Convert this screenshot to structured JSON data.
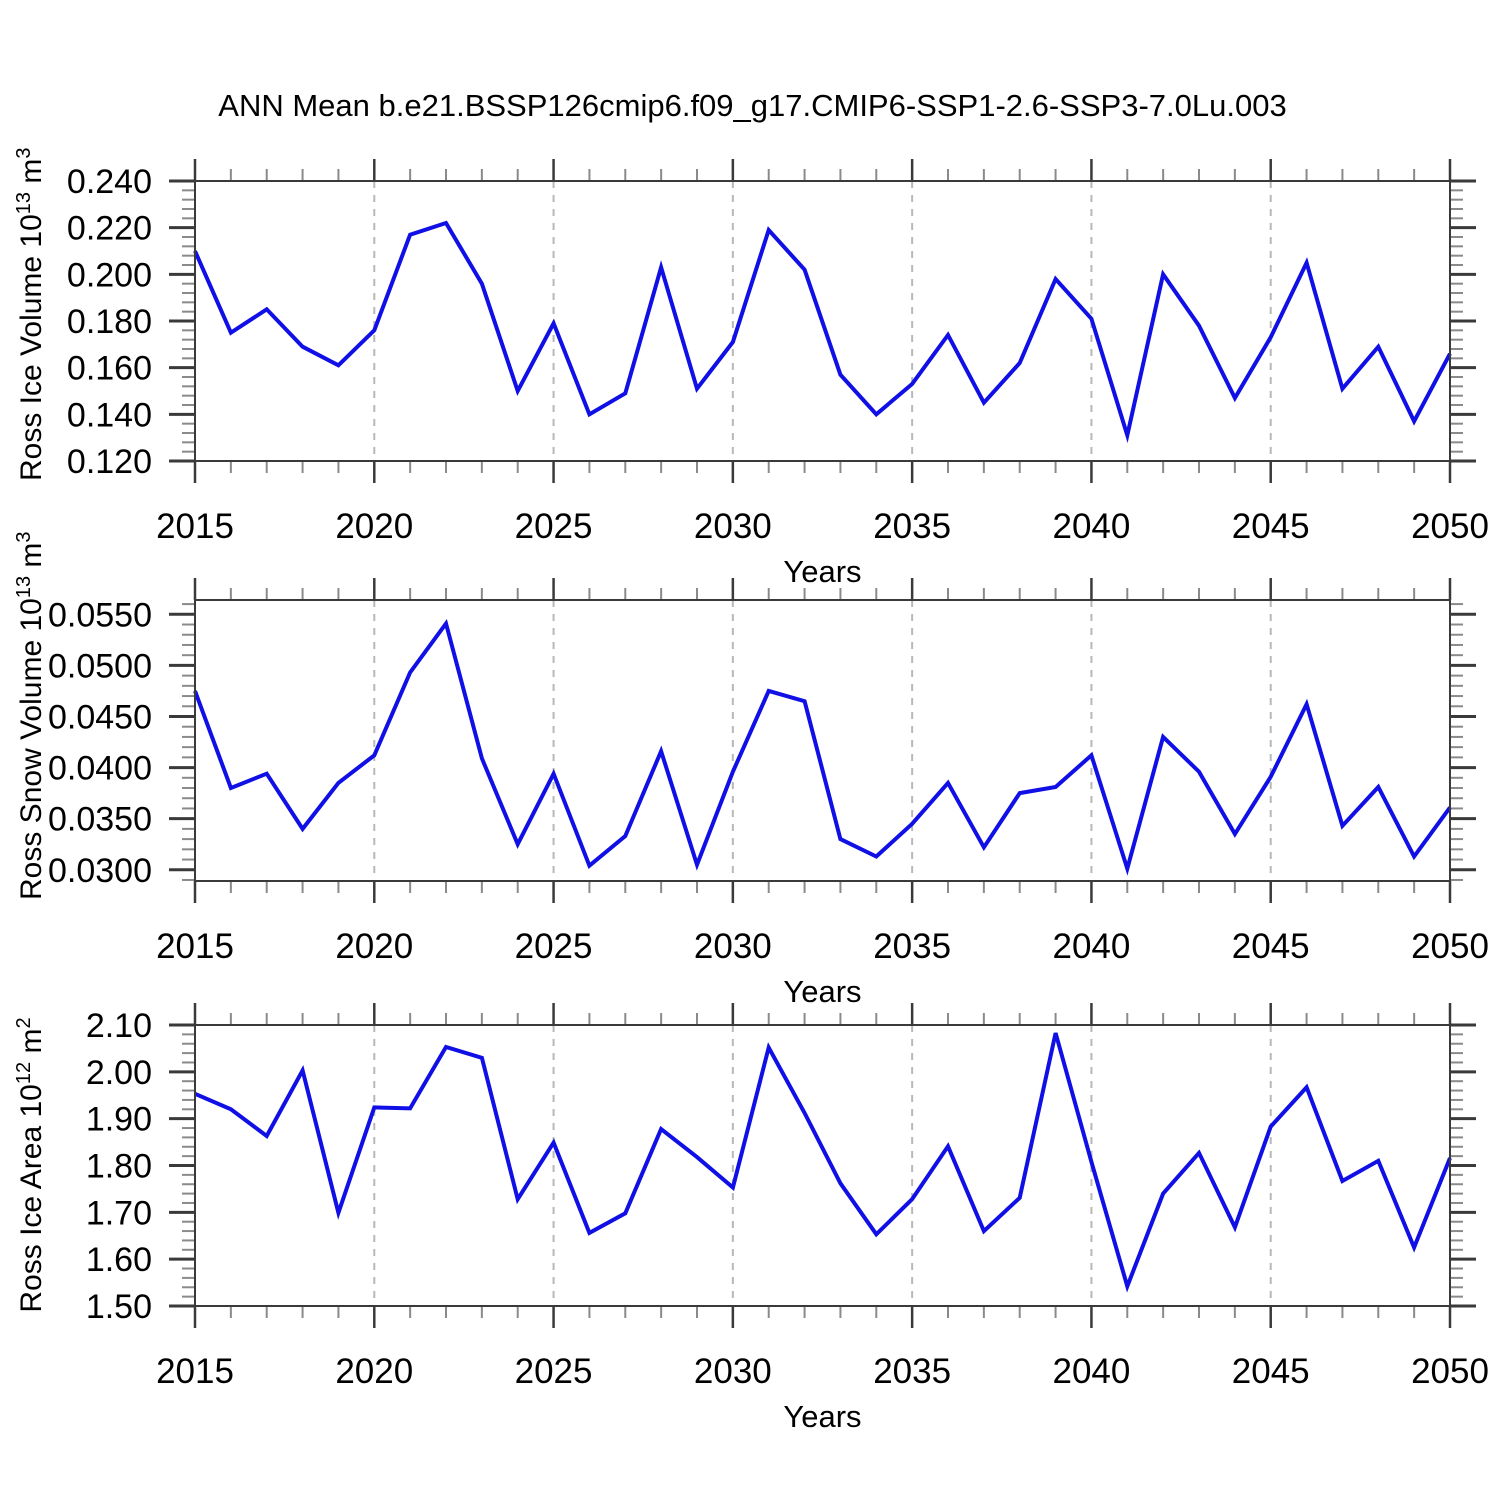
{
  "title": "ANN Mean b.e21.BSSP126cmip6.f09_g17.CMIP6-SSP1-2.6-SSP3-7.0Lu.003",
  "colors": {
    "line": "#0f0fe6",
    "frame": "#3a3a3a",
    "major_tick": "#3a3a3a",
    "minor_tick": "#8a8a8a",
    "gridline": "#b8b8b8",
    "text": "#000000"
  },
  "chart_data": [
    {
      "type": "line",
      "ylabel": "Ross Ice Volume 10^13 m^3",
      "ylabel_segments": [
        [
          "Ross Ice Volume 10",
          false
        ],
        [
          "13",
          true
        ],
        [
          " m",
          false
        ],
        [
          "3",
          true
        ]
      ],
      "xlabel": "Years",
      "x": [
        2015,
        2016,
        2017,
        2018,
        2019,
        2020,
        2021,
        2022,
        2023,
        2024,
        2025,
        2026,
        2027,
        2028,
        2029,
        2030,
        2031,
        2032,
        2033,
        2034,
        2035,
        2036,
        2037,
        2038,
        2039,
        2040,
        2041,
        2042,
        2043,
        2044,
        2045,
        2046,
        2047,
        2048,
        2049,
        2050
      ],
      "values": [
        0.21,
        0.175,
        0.185,
        0.169,
        0.161,
        0.176,
        0.217,
        0.222,
        0.196,
        0.15,
        0.179,
        0.14,
        0.149,
        0.203,
        0.151,
        0.171,
        0.219,
        0.202,
        0.157,
        0.14,
        0.153,
        0.174,
        0.145,
        0.162,
        0.198,
        0.181,
        0.131,
        0.2,
        0.178,
        0.147,
        0.173,
        0.205,
        0.151,
        0.169,
        0.137,
        0.166
      ],
      "xlim": [
        2015,
        2050
      ],
      "ylim": [
        0.12,
        0.24
      ],
      "xtick_major": [
        2015,
        2020,
        2025,
        2030,
        2035,
        2040,
        2045,
        2050
      ],
      "xtick_labels": [
        "2015",
        "2020",
        "2025",
        "2030",
        "2035",
        "2040",
        "2045",
        "2050"
      ],
      "xtick_minor_step": 1,
      "ytick_values": [
        0.12,
        0.14,
        0.16,
        0.18,
        0.2,
        0.22,
        0.24
      ],
      "ytick_labels": [
        "0.120",
        "0.140",
        "0.160",
        "0.180",
        "0.200",
        "0.220",
        "0.240"
      ],
      "ytick_minor_step": 0.004,
      "gridline_years": [
        2020,
        2025,
        2030,
        2035,
        2040,
        2045
      ],
      "grid": "vertical-dashed",
      "legend": "none"
    },
    {
      "type": "line",
      "ylabel": "Ross Snow Volume 10^13 m^3",
      "ylabel_segments": [
        [
          "Ross Snow Volume 10",
          false
        ],
        [
          "13",
          true
        ],
        [
          " m",
          false
        ],
        [
          "3",
          true
        ]
      ],
      "xlabel": "Years",
      "x": [
        2015,
        2016,
        2017,
        2018,
        2019,
        2020,
        2021,
        2022,
        2023,
        2024,
        2025,
        2026,
        2027,
        2028,
        2029,
        2030,
        2031,
        2032,
        2033,
        2034,
        2035,
        2036,
        2037,
        2038,
        2039,
        2040,
        2041,
        2042,
        2043,
        2044,
        2045,
        2046,
        2047,
        2048,
        2049,
        2050
      ],
      "values": [
        0.0475,
        0.038,
        0.0394,
        0.034,
        0.0385,
        0.0412,
        0.0493,
        0.0541,
        0.0409,
        0.0325,
        0.0394,
        0.0304,
        0.0333,
        0.0416,
        0.0305,
        0.0396,
        0.0475,
        0.0465,
        0.033,
        0.0313,
        0.0345,
        0.0385,
        0.0322,
        0.0375,
        0.0381,
        0.0412,
        0.0301,
        0.043,
        0.0396,
        0.0335,
        0.0391,
        0.0462,
        0.0343,
        0.0381,
        0.0313,
        0.0361
      ],
      "xlim": [
        2015,
        2050
      ],
      "ylim": [
        0.0289,
        0.0564
      ],
      "xtick_major": [
        2015,
        2020,
        2025,
        2030,
        2035,
        2040,
        2045,
        2050
      ],
      "xtick_labels": [
        "2015",
        "2020",
        "2025",
        "2030",
        "2035",
        "2040",
        "2045",
        "2050"
      ],
      "xtick_minor_step": 1,
      "ytick_values": [
        0.03,
        0.035,
        0.04,
        0.045,
        0.05,
        0.055
      ],
      "ytick_labels": [
        "0.0300",
        "0.0350",
        "0.0400",
        "0.0450",
        "0.0500",
        "0.0550"
      ],
      "ytick_minor_step": 0.001,
      "gridline_years": [
        2020,
        2025,
        2030,
        2035,
        2040,
        2045
      ],
      "grid": "vertical-dashed",
      "legend": "none"
    },
    {
      "type": "line",
      "ylabel": "Ross Ice Area 10^12 m^2",
      "ylabel_segments": [
        [
          "Ross Ice Area 10",
          false
        ],
        [
          "12",
          true
        ],
        [
          " m",
          false
        ],
        [
          "2",
          true
        ]
      ],
      "xlabel": "Years",
      "x": [
        2015,
        2016,
        2017,
        2018,
        2019,
        2020,
        2021,
        2022,
        2023,
        2024,
        2025,
        2026,
        2027,
        2028,
        2029,
        2030,
        2031,
        2032,
        2033,
        2034,
        2035,
        2036,
        2037,
        2038,
        2039,
        2040,
        2041,
        2042,
        2043,
        2044,
        2045,
        2046,
        2047,
        2048,
        2049,
        2050
      ],
      "values": [
        1.953,
        1.92,
        1.863,
        2.003,
        1.699,
        1.924,
        1.922,
        2.053,
        2.03,
        1.728,
        1.849,
        1.656,
        1.698,
        1.878,
        1.818,
        1.753,
        2.052,
        1.912,
        1.762,
        1.653,
        1.728,
        1.841,
        1.66,
        1.731,
        2.083,
        1.808,
        1.542,
        1.74,
        1.827,
        1.668,
        1.883,
        1.967,
        1.767,
        1.81,
        1.625,
        1.816
      ],
      "xlim": [
        2015,
        2050
      ],
      "ylim": [
        1.5,
        2.1
      ],
      "xtick_major": [
        2015,
        2020,
        2025,
        2030,
        2035,
        2040,
        2045,
        2050
      ],
      "xtick_labels": [
        "2015",
        "2020",
        "2025",
        "2030",
        "2035",
        "2040",
        "2045",
        "2050"
      ],
      "xtick_minor_step": 1,
      "ytick_values": [
        1.5,
        1.6,
        1.7,
        1.8,
        1.9,
        2.0,
        2.1
      ],
      "ytick_labels": [
        "1.50",
        "1.60",
        "1.70",
        "1.80",
        "1.90",
        "2.00",
        "2.10"
      ],
      "ytick_minor_step": 0.02,
      "gridline_years": [
        2020,
        2025,
        2030,
        2035,
        2040,
        2045
      ],
      "grid": "vertical-dashed",
      "legend": "none"
    }
  ]
}
